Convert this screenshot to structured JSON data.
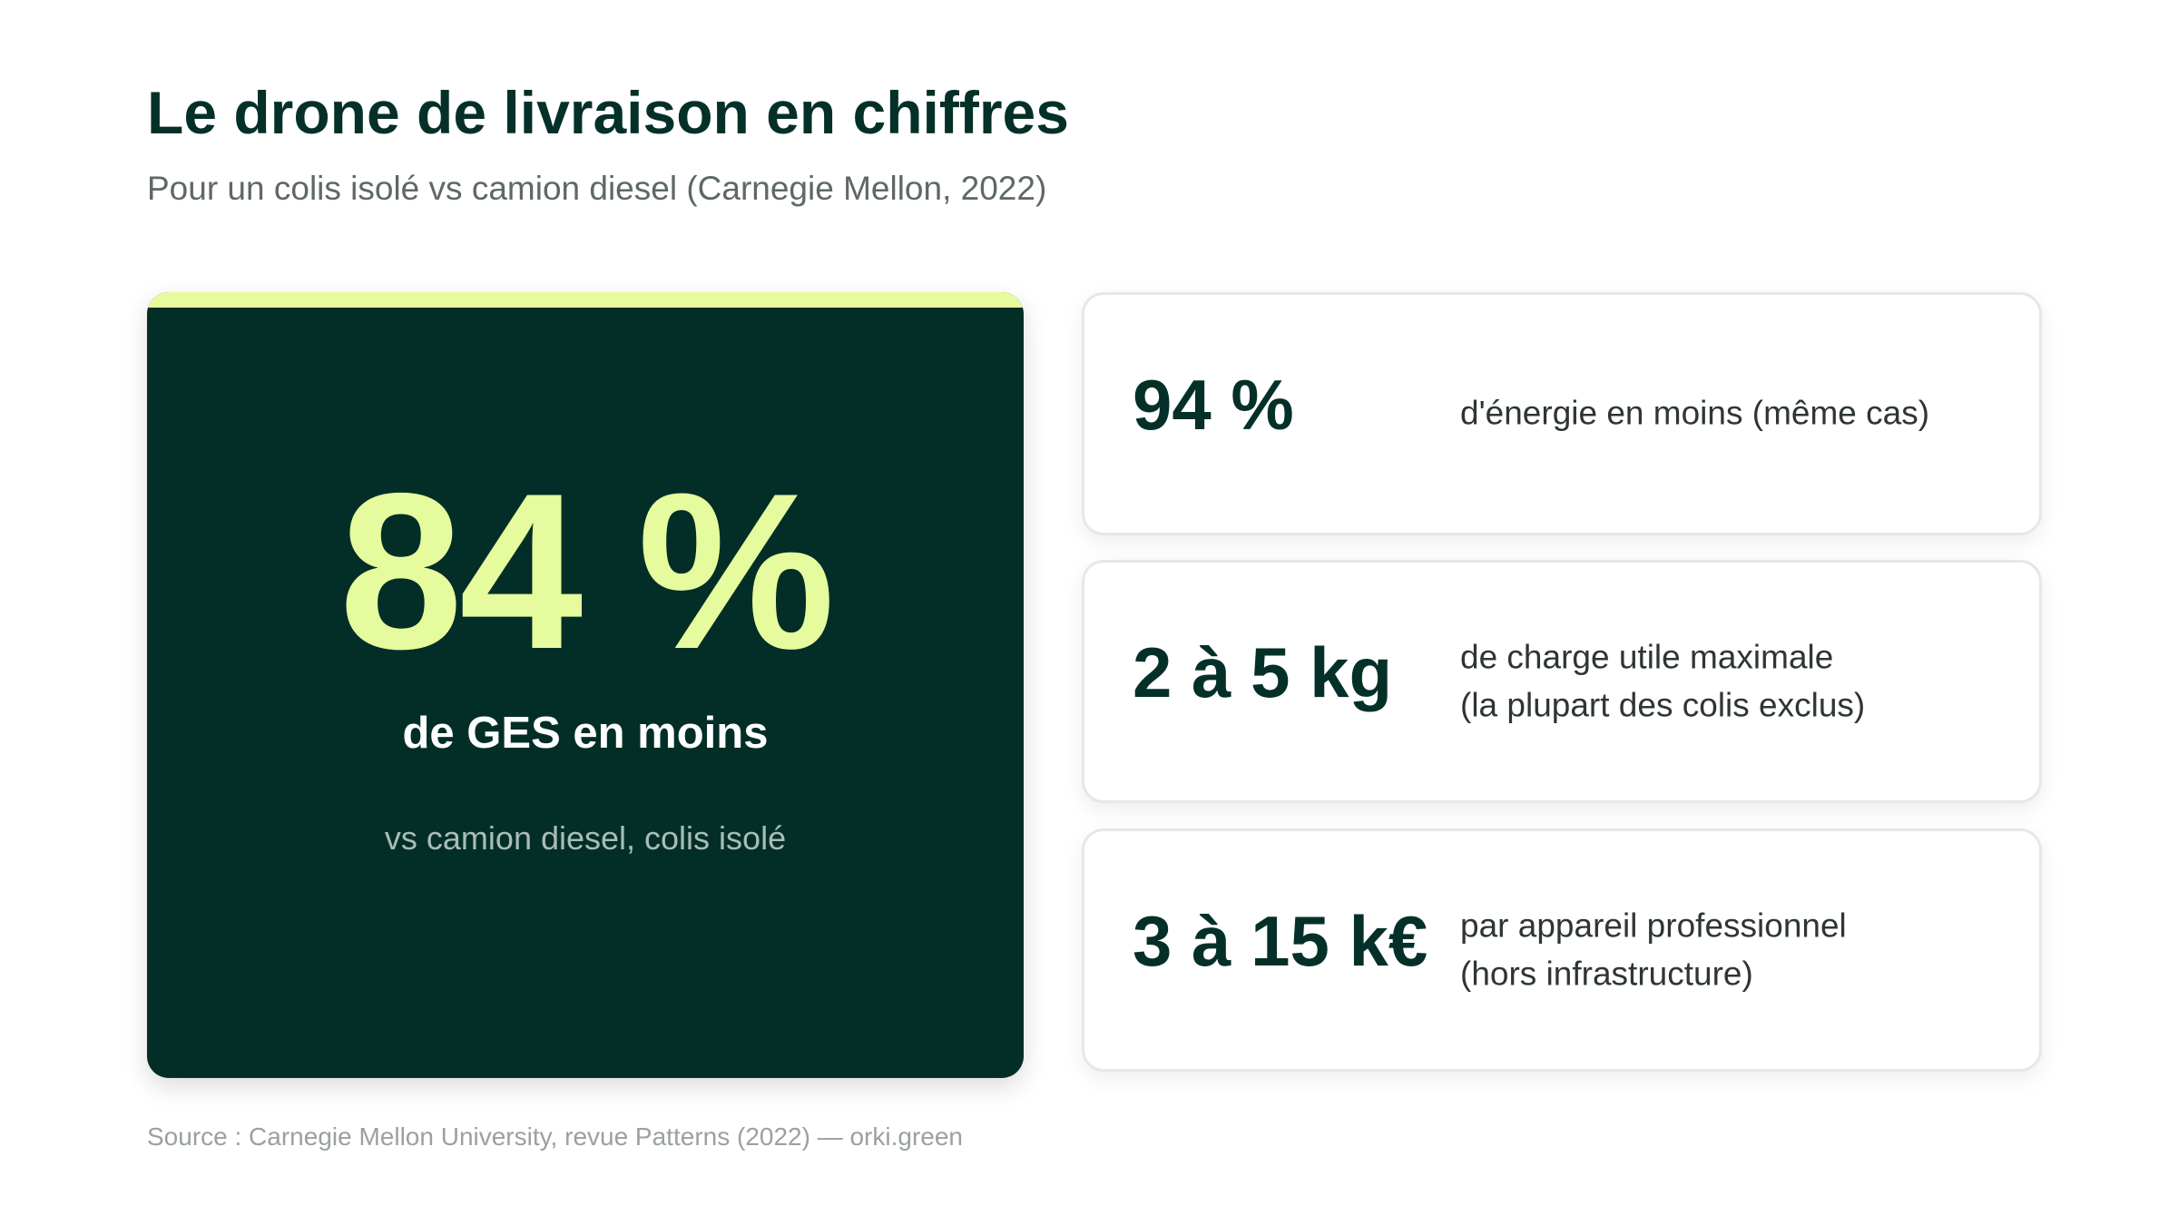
{
  "header": {
    "title": "Le drone de livraison en chiffres",
    "subtitle": "Pour un colis isolé vs camion diesel (Carnegie Mellon, 2022)"
  },
  "hero": {
    "value": "84 %",
    "label": "de GES en moins",
    "note": "vs camion diesel, colis isolé"
  },
  "cards": [
    {
      "value": "94 %",
      "description": "d'énergie en moins (même cas)"
    },
    {
      "value": "2 à 5 kg",
      "description": "de charge utile maximale\n(la plupart des colis exclus)"
    },
    {
      "value": "3 à 15 k€",
      "description": "par appareil professionnel\n(hors infrastructure)"
    }
  ],
  "footer": {
    "source": "Source : Carnegie Mellon University, revue Patterns (2022) — orki.green"
  },
  "colors": {
    "primary_dark": "#032e28",
    "accent_lime": "#e6fb9d",
    "text_muted": "#5e6866"
  }
}
